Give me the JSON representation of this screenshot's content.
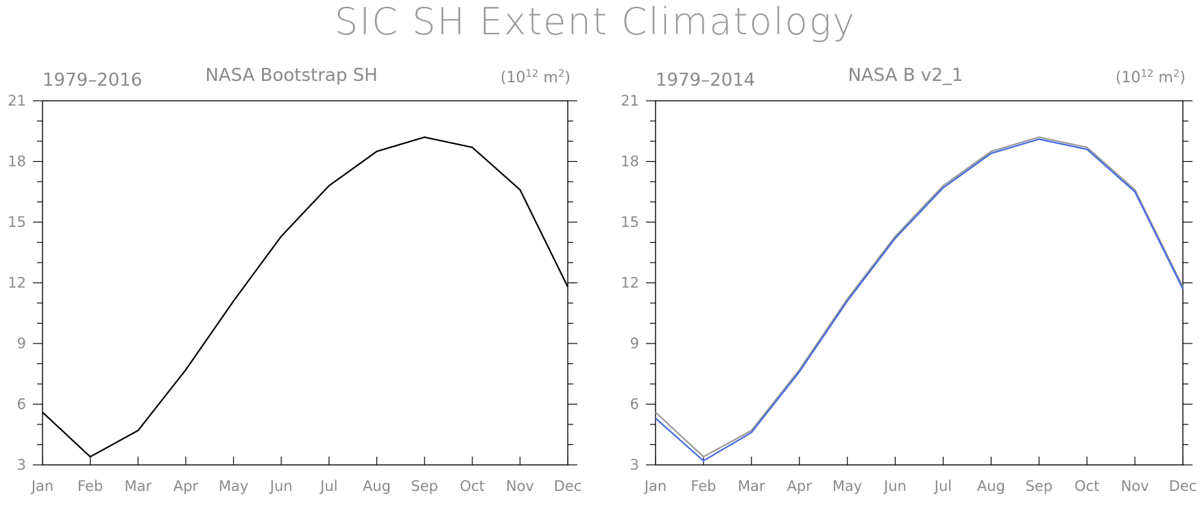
{
  "title": "SIC SH Extent Climatology",
  "panels": [
    {
      "left_label": "1979–2016",
      "center_label": "NASA Bootstrap SH",
      "unit_base": "(10",
      "unit_exp": "12",
      "unit_mid": " m",
      "unit_exp2": "2",
      "unit_end": ")"
    },
    {
      "left_label": "1979–2014",
      "center_label": "NASA B v2_1",
      "unit_base": "(10",
      "unit_exp": "12",
      "unit_mid": " m",
      "unit_exp2": "2",
      "unit_end": ")"
    }
  ],
  "chart_data": [
    {
      "type": "line",
      "title": "NASA Bootstrap SH",
      "period": "1979–2016",
      "units": "(10^12 m^2)",
      "categories": [
        "Jan",
        "Feb",
        "Mar",
        "Apr",
        "May",
        "Jun",
        "Jul",
        "Aug",
        "Sep",
        "Oct",
        "Nov",
        "Dec"
      ],
      "ylim": [
        3,
        21
      ],
      "yticks": [
        3,
        6,
        9,
        12,
        15,
        18,
        21
      ],
      "series": [
        {
          "values": [
            5.6,
            3.4,
            4.7,
            7.7,
            11.1,
            14.3,
            16.8,
            18.5,
            19.2,
            18.7,
            16.6,
            11.8
          ],
          "color": "#000000"
        }
      ]
    },
    {
      "type": "line",
      "title": "NASA B v2_1",
      "period": "1979–2014",
      "units": "(10^12 m^2)",
      "categories": [
        "Jan",
        "Feb",
        "Mar",
        "Apr",
        "May",
        "Jun",
        "Jul",
        "Aug",
        "Sep",
        "Oct",
        "Nov",
        "Dec"
      ],
      "ylim": [
        3,
        21
      ],
      "yticks": [
        3,
        6,
        9,
        12,
        15,
        18,
        21
      ],
      "series": [
        {
          "values": [
            5.6,
            3.4,
            4.7,
            7.7,
            11.2,
            14.3,
            16.8,
            18.5,
            19.2,
            18.7,
            16.6,
            11.8
          ],
          "color": "#999999"
        },
        {
          "values": [
            5.3,
            3.2,
            4.6,
            7.6,
            11.1,
            14.2,
            16.7,
            18.4,
            19.1,
            18.6,
            16.5,
            11.7
          ],
          "color": "#4169e1"
        }
      ]
    }
  ]
}
